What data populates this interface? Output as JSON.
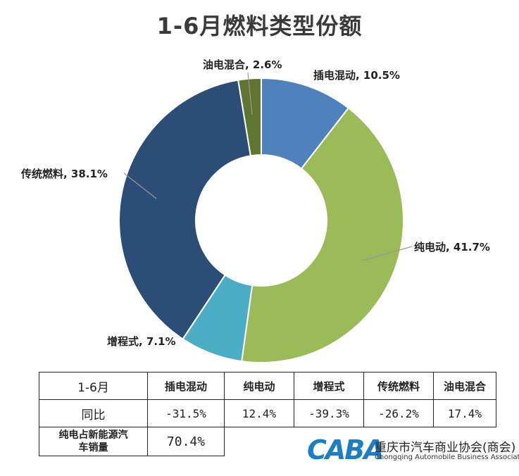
{
  "chart_data": {
    "type": "pie",
    "title": "1-6月燃料类型份额",
    "donut": true,
    "slices": [
      {
        "name": "插电混动",
        "value": 10.5,
        "label": "插电混动, 10.5%",
        "color": "#4f81bd"
      },
      {
        "name": "纯电动",
        "value": 41.7,
        "label": "纯电动, 41.7%",
        "color": "#9bbb59"
      },
      {
        "name": "增程式",
        "value": 7.1,
        "label": "增程式, 7.1%",
        "color": "#4bacc6"
      },
      {
        "name": "传统燃料",
        "value": 38.1,
        "label": "传统燃料, 38.1%",
        "color": "#2c4d75"
      },
      {
        "name": "油电混合",
        "value": 2.6,
        "label": "油电混合, 2.6%",
        "color": "#5f7530"
      }
    ]
  },
  "table": {
    "corner": "1-6月",
    "headers": [
      "插电混动",
      "纯电动",
      "增程式",
      "传统燃料",
      "油电混合"
    ],
    "yoy_label": "同比",
    "yoy_values": [
      "-31.5%",
      "12.4%",
      "-39.3%",
      "-26.2%",
      "17.4%"
    ],
    "share_label_line1": "纯电占新能源汽",
    "share_label_line2": "车销量",
    "share_value": "70.4%"
  },
  "logo": {
    "mark": "CABA",
    "name_cn": "重庆市汽车商业协会(商会)",
    "name_en": "Chongqing Automobile Business Association"
  }
}
